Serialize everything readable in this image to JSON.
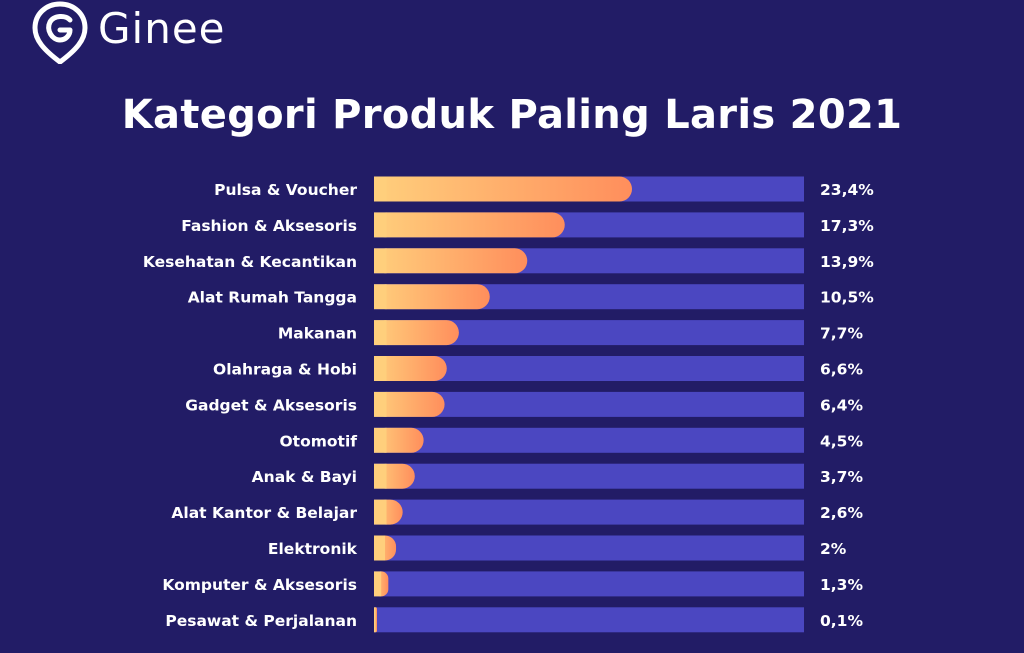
{
  "brand": {
    "name": "Ginee"
  },
  "chart_data": {
    "type": "bar",
    "orientation": "horizontal",
    "title": "Kategori Produk Paling Laris 2021",
    "xlabel": "",
    "ylabel": "",
    "xlim": [
      0,
      39
    ],
    "grid": false,
    "colors": {
      "bar_fill_start": "#ffcf7c",
      "bar_fill_end": "#ff8e5c",
      "track": "#4b47c1",
      "background": "#221c66"
    },
    "categories": [
      "Pulsa & Voucher",
      "Fashion & Aksesoris",
      "Kesehatan & Kecantikan",
      "Alat Rumah Tangga",
      "Makanan",
      "Olahraga & Hobi",
      "Gadget & Aksesoris",
      "Otomotif",
      "Anak & Bayi",
      "Alat Kantor & Belajar",
      "Elektronik",
      "Komputer & Aksesoris",
      "Pesawat & Perjalanan"
    ],
    "values": [
      23.4,
      17.3,
      13.9,
      10.5,
      7.7,
      6.6,
      6.4,
      4.5,
      3.7,
      2.6,
      2,
      1.3,
      0.1
    ],
    "value_labels": [
      "23,4%",
      "17,3%",
      "13,9%",
      "10,5%",
      "7,7%",
      "6,6%",
      "6,4%",
      "4,5%",
      "3,7%",
      "2,6%",
      "2%",
      "1,3%",
      "0,1%"
    ]
  }
}
